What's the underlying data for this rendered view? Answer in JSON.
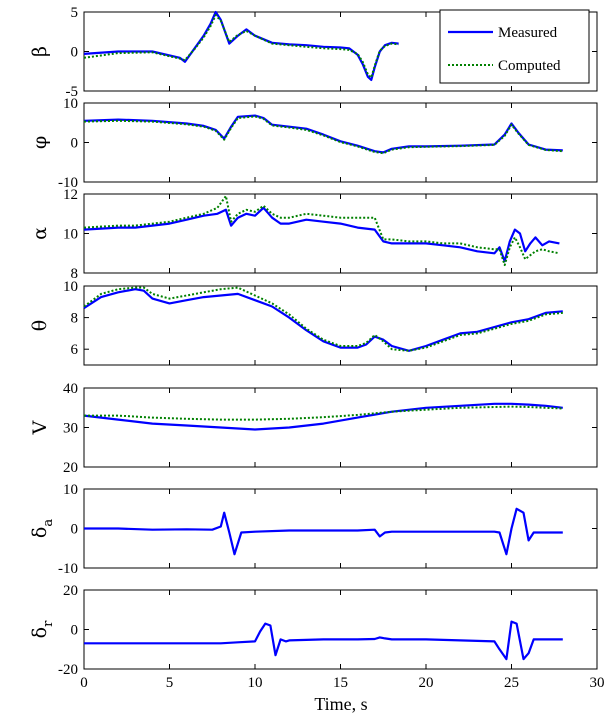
{
  "chart_data": {
    "type": "line",
    "xlabel": "Time, s",
    "xlim": [
      0,
      30
    ],
    "xticks": [
      0,
      5,
      10,
      15,
      20,
      25,
      30
    ],
    "legend": {
      "placement": "top-right",
      "entries": [
        "Measured",
        "Computed"
      ]
    },
    "colors": {
      "measured": "#0000ff",
      "computed": "#008000"
    },
    "panels": [
      {
        "id": "beta",
        "ylabel": "β",
        "ylabel_sub": "",
        "ylim": [
          -5,
          5
        ],
        "yticks": [
          -5,
          0,
          5
        ],
        "series": [
          {
            "name": "Measured",
            "style": "solid",
            "x": [
              0,
              2,
              4,
              5.6,
              5.9,
              6.5,
              7,
              7.4,
              7.7,
              8,
              8.5,
              9,
              9.5,
              10,
              11,
              12,
              13,
              14,
              15,
              15.5,
              16,
              16.3,
              16.6,
              16.8,
              17,
              17.3,
              17.6,
              18,
              18.4
            ],
            "y": [
              -0.3,
              0,
              0,
              -0.8,
              -1.3,
              0.5,
              2,
              3.5,
              5,
              4,
              1,
              2,
              2.8,
              2,
              1.1,
              0.9,
              0.8,
              0.6,
              0.5,
              0.4,
              -0.4,
              -1.6,
              -3.2,
              -3.6,
              -2,
              0,
              0.8,
              1.1,
              1
            ]
          },
          {
            "name": "Computed",
            "style": "dotted",
            "x": [
              0,
              2,
              4,
              5.6,
              5.9,
              6.5,
              7,
              7.4,
              7.7,
              8,
              8.5,
              9,
              9.5,
              10,
              11,
              12,
              13,
              14,
              15,
              15.5,
              16,
              16.3,
              16.6,
              16.8,
              17,
              17.3,
              17.6,
              18,
              18.4
            ],
            "y": [
              -0.8,
              -0.2,
              -0.1,
              -0.9,
              -1.1,
              0.4,
              1.8,
              3.2,
              4.6,
              3.9,
              1.2,
              2.1,
              2.6,
              2,
              1,
              0.8,
              0.6,
              0.4,
              0.3,
              0.2,
              -0.3,
              -1.3,
              -2.9,
              -3.3,
              -1.8,
              0.1,
              0.7,
              1,
              0.9
            ]
          }
        ]
      },
      {
        "id": "phi",
        "ylabel": "φ",
        "ylabel_sub": "",
        "ylim": [
          -10,
          10
        ],
        "yticks": [
          -10,
          0,
          10
        ],
        "series": [
          {
            "name": "Measured",
            "style": "solid",
            "x": [
              0,
              2,
              4,
              6,
              7,
              7.7,
              8.2,
              8.6,
              9,
              10,
              10.5,
              11,
              12,
              13,
              14,
              15,
              16,
              17,
              17.5,
              18,
              19,
              20,
              22,
              24,
              24.6,
              25,
              25.4,
              26,
              27,
              28
            ],
            "y": [
              5.5,
              5.8,
              5.5,
              4.8,
              4.2,
              3.2,
              1,
              4,
              6.5,
              6.8,
              6.2,
              4.5,
              4,
              3.5,
              2,
              0.3,
              -0.8,
              -2.2,
              -2.5,
              -1.6,
              -1,
              -1,
              -0.8,
              -0.5,
              2,
              4.8,
              2.5,
              -0.5,
              -1.8,
              -2
            ]
          },
          {
            "name": "Computed",
            "style": "dotted",
            "x": [
              0,
              2,
              4,
              6,
              7,
              7.7,
              8.2,
              8.6,
              9,
              10,
              10.5,
              11,
              12,
              13,
              14,
              15,
              16,
              17,
              17.5,
              18,
              19,
              20,
              22,
              24,
              24.6,
              25,
              25.4,
              26,
              27,
              28
            ],
            "y": [
              5.3,
              5.5,
              5.3,
              4.6,
              4,
              3,
              0.7,
              3.7,
              6.2,
              6.6,
              6,
              4.3,
              3.8,
              3.2,
              1.8,
              0.1,
              -1,
              -2.4,
              -2.7,
              -1.8,
              -1.2,
              -1.1,
              -0.9,
              -0.6,
              1.7,
              4.5,
              2.3,
              -0.6,
              -1.9,
              -2.2
            ]
          }
        ]
      },
      {
        "id": "alpha",
        "ylabel": "α",
        "ylabel_sub": "",
        "ylim": [
          8,
          12
        ],
        "yticks": [
          8,
          10,
          12
        ],
        "series": [
          {
            "name": "Measured",
            "style": "solid",
            "x": [
              0,
              2,
              3,
              5,
              6,
              7,
              7.8,
              8.3,
              8.6,
              9,
              9.5,
              10,
              10.5,
              11,
              11.5,
              12,
              13,
              14,
              15,
              16,
              17,
              17.5,
              18,
              19,
              20,
              21,
              22,
              23,
              24,
              24.3,
              24.6,
              24.9,
              25.2,
              25.5,
              25.8,
              26.1,
              26.4,
              26.8,
              27.2,
              27.8
            ],
            "y": [
              10.2,
              10.3,
              10.3,
              10.5,
              10.7,
              10.9,
              11,
              11.2,
              10.4,
              10.8,
              11,
              10.9,
              11.3,
              10.8,
              10.5,
              10.5,
              10.7,
              10.6,
              10.5,
              10.3,
              10.2,
              9.6,
              9.5,
              9.5,
              9.5,
              9.4,
              9.3,
              9.1,
              9,
              9.3,
              8.6,
              9.6,
              10.2,
              10,
              9.1,
              9.5,
              9.8,
              9.4,
              9.6,
              9.5
            ]
          },
          {
            "name": "Computed",
            "style": "dotted",
            "x": [
              0,
              2,
              3,
              5,
              6,
              7,
              7.8,
              8.3,
              8.6,
              9,
              9.5,
              10,
              10.5,
              11,
              11.5,
              12,
              13,
              14,
              15,
              16,
              17,
              17.5,
              18,
              19,
              20,
              21,
              22,
              23,
              24,
              24.3,
              24.6,
              24.9,
              25.2,
              25.5,
              25.8,
              26.1,
              26.4,
              26.8,
              27.2,
              27.8
            ],
            "y": [
              10.3,
              10.4,
              10.4,
              10.6,
              10.8,
              11,
              11.3,
              11.9,
              10.6,
              11,
              11.2,
              11.1,
              11.4,
              11,
              10.8,
              10.8,
              11,
              10.9,
              10.8,
              10.8,
              10.8,
              9.7,
              9.7,
              9.6,
              9.6,
              9.5,
              9.5,
              9.3,
              9.2,
              9.2,
              8.4,
              9.3,
              9.8,
              9.3,
              8.7,
              8.9,
              9.1,
              9.2,
              9.1,
              9
            ]
          }
        ]
      },
      {
        "id": "theta",
        "ylabel": "θ",
        "ylabel_sub": "",
        "ylim": [
          5,
          10
        ],
        "yticks": [
          6,
          8,
          10
        ],
        "series": [
          {
            "name": "Measured",
            "style": "solid",
            "x": [
              0,
              1,
              2,
              3,
              3.5,
              4,
              5,
              6,
              7,
              8,
              9,
              10,
              11,
              12,
              13,
              14,
              15,
              16,
              16.5,
              17,
              17.5,
              18,
              19,
              20,
              21,
              22,
              23,
              24,
              25,
              26,
              27,
              28
            ],
            "y": [
              8.6,
              9.3,
              9.6,
              9.8,
              9.7,
              9.2,
              8.9,
              9.1,
              9.3,
              9.4,
              9.5,
              9.1,
              8.7,
              8,
              7.2,
              6.5,
              6.1,
              6.1,
              6.3,
              6.8,
              6.6,
              6.2,
              5.9,
              6.2,
              6.6,
              7,
              7.1,
              7.4,
              7.7,
              7.9,
              8.3,
              8.4
            ]
          },
          {
            "name": "Computed",
            "style": "dotted",
            "x": [
              0,
              1,
              2,
              3,
              3.5,
              4,
              5,
              6,
              7,
              8,
              9,
              10,
              11,
              12,
              13,
              14,
              15,
              16,
              16.5,
              17,
              17.5,
              18,
              19,
              20,
              21,
              22,
              23,
              24,
              25,
              26,
              27,
              28
            ],
            "y": [
              8.7,
              9.5,
              9.8,
              9.9,
              9.9,
              9.5,
              9.2,
              9.4,
              9.6,
              9.8,
              9.9,
              9.4,
              8.9,
              8.2,
              7.3,
              6.6,
              6.2,
              6.2,
              6.4,
              6.9,
              6.5,
              6,
              5.9,
              6.1,
              6.5,
              6.9,
              7,
              7.3,
              7.6,
              7.8,
              8.2,
              8.3
            ]
          }
        ]
      },
      {
        "id": "V",
        "ylabel": "V",
        "ylabel_sub": "",
        "ylim": [
          20,
          40
        ],
        "yticks": [
          20,
          30,
          40
        ],
        "series": [
          {
            "name": "Measured",
            "style": "solid",
            "x": [
              0,
              2,
              4,
              6,
              8,
              10,
              12,
              14,
              16,
              18,
              20,
              22,
              24,
              25,
              26,
              27,
              28
            ],
            "y": [
              33,
              32,
              31,
              30.5,
              30,
              29.5,
              30,
              31,
              32.5,
              34,
              35,
              35.5,
              36,
              36,
              35.8,
              35.5,
              35
            ]
          },
          {
            "name": "Computed",
            "style": "dotted",
            "x": [
              0,
              2,
              4,
              6,
              8,
              10,
              12,
              14,
              16,
              18,
              20,
              22,
              24,
              25,
              26,
              27,
              28
            ],
            "y": [
              33,
              33,
              32.5,
              32.2,
              32,
              32,
              32.2,
              32.6,
              33.2,
              34,
              34.5,
              35,
              35.2,
              35.3,
              35.2,
              35,
              34.8
            ]
          }
        ]
      },
      {
        "id": "delta_a",
        "ylabel": "δ",
        "ylabel_sub": "a",
        "ylim": [
          -10,
          10
        ],
        "yticks": [
          -10,
          0,
          10
        ],
        "series": [
          {
            "name": "Measured",
            "style": "solid",
            "x": [
              0,
              2,
              4,
              6,
              7.5,
              8,
              8.2,
              8.5,
              8.8,
              9.2,
              10,
              12,
              14,
              15,
              16,
              17,
              17.3,
              17.6,
              18,
              20,
              22,
              24,
              24.3,
              24.7,
              25,
              25.3,
              25.7,
              26,
              26.3,
              27,
              28
            ],
            "y": [
              0,
              0,
              -0.3,
              -0.2,
              -0.3,
              0.5,
              4,
              -1,
              -6.5,
              -1,
              -0.8,
              -0.5,
              -0.5,
              -0.5,
              -0.5,
              -0.3,
              -2,
              -1,
              -0.8,
              -0.8,
              -0.8,
              -0.8,
              -1,
              -6.5,
              0,
              5,
              4,
              -3,
              -1,
              -1,
              -1
            ]
          }
        ]
      },
      {
        "id": "delta_r",
        "ylabel": "δ",
        "ylabel_sub": "r",
        "ylim": [
          -20,
          20
        ],
        "yticks": [
          -20,
          0,
          20
        ],
        "series": [
          {
            "name": "Measured",
            "style": "solid",
            "x": [
              0,
              2,
              4,
              6,
              8,
              9,
              10,
              10.3,
              10.6,
              10.9,
              11.2,
              11.5,
              11.8,
              12,
              14,
              16,
              17,
              17.3,
              17.6,
              18,
              20,
              22,
              24,
              24.3,
              24.7,
              25,
              25.3,
              25.7,
              26,
              26.3,
              26.6,
              27,
              28
            ],
            "y": [
              -7,
              -7,
              -7,
              -7,
              -7,
              -6.5,
              -6,
              -1,
              3,
              2,
              -13,
              -5,
              -6,
              -5.5,
              -5,
              -5,
              -4.8,
              -4,
              -4.5,
              -5,
              -5,
              -5.5,
              -6,
              -10,
              -15,
              4,
              3,
              -15,
              -12,
              -5,
              -5,
              -5,
              -5
            ]
          }
        ]
      }
    ]
  }
}
